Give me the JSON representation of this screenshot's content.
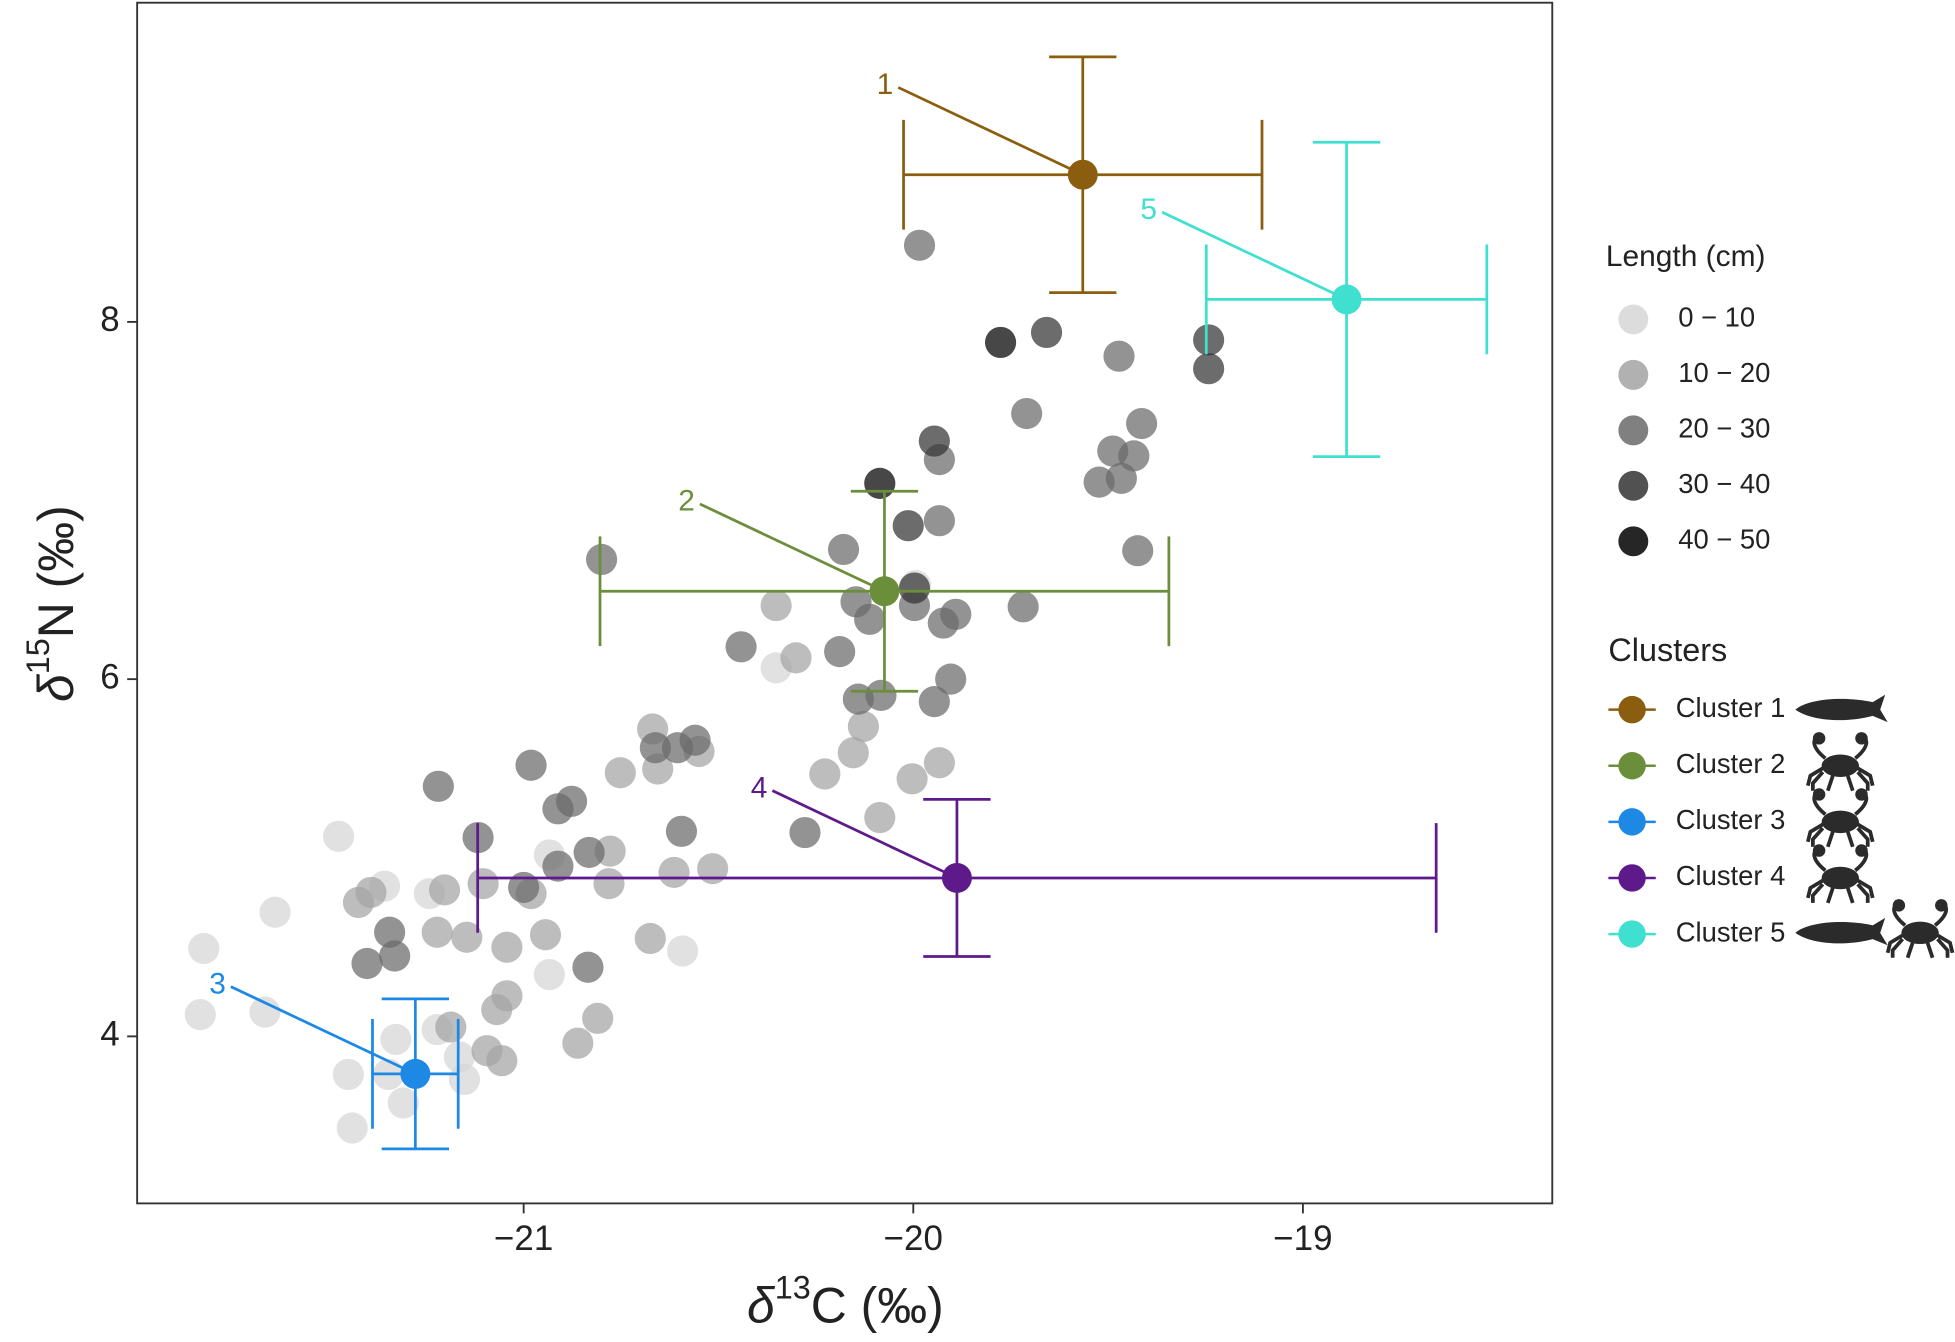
{
  "chart_data": {
    "type": "scatter",
    "x_label": {
      "symbol": "δ",
      "sup": "13",
      "text": "C (‰)"
    },
    "y_label": {
      "symbol": "δ",
      "sup": "15",
      "text": "N (‰)"
    },
    "xlim": [
      -21.992,
      -18.36
    ],
    "ylim": [
      3.065,
      9.787
    ],
    "xticks": [
      {
        "value": -21,
        "label": "−21"
      },
      {
        "value": -20,
        "label": "−20"
      },
      {
        "value": -19,
        "label": "−19"
      }
    ],
    "yticks": [
      4,
      6,
      8
    ],
    "legend_title": "Length (cm)",
    "series": [
      {
        "name": "0 − 10",
        "color": "#d6d6d6",
        "x": [
          -19.994,
          -20.352,
          -20.934,
          -21.242,
          -21.475,
          -21.638,
          -21.357,
          -20.592,
          -20.934,
          -21.821,
          -21.83,
          -21.664,
          -21.222,
          -21.328,
          -21.165,
          -21.152,
          -21.45,
          -21.347,
          -21.309,
          -21.44
        ],
        "y": [
          6.524,
          6.063,
          5.016,
          4.799,
          5.12,
          4.695,
          4.841,
          4.478,
          4.346,
          4.492,
          4.122,
          4.136,
          4.038,
          3.983,
          3.885,
          3.759,
          3.787,
          3.787,
          3.627,
          3.487
        ]
      },
      {
        "name": "10 − 20",
        "color": "#a3a3a3",
        "x": [
          -20.352,
          -20.301,
          -20.128,
          -20.154,
          -19.933,
          -20.227,
          -20.003,
          -20.086,
          -20.669,
          -20.656,
          -20.55,
          -20.752,
          -20.778,
          -20.515,
          -20.614,
          -20.781,
          -21.104,
          -20.981,
          -21.203,
          -21.424,
          -21.392,
          -21.222,
          -21.146,
          -20.944,
          -21.043,
          -20.675,
          -21.043,
          -21.069,
          -20.81,
          -20.861,
          -21.187,
          -21.094,
          -21.056
        ],
        "y": [
          6.412,
          6.119,
          5.735,
          5.588,
          5.532,
          5.469,
          5.442,
          5.225,
          5.721,
          5.497,
          5.595,
          5.476,
          5.037,
          4.939,
          4.918,
          4.855,
          4.855,
          4.799,
          4.82,
          4.75,
          4.806,
          4.583,
          4.555,
          4.569,
          4.499,
          4.548,
          4.227,
          4.15,
          4.101,
          3.962,
          4.052,
          3.92,
          3.864
        ]
      },
      {
        "name": "20 − 30",
        "color": "#6a6a6a",
        "x": [
          -19.984,
          -19.472,
          -19.709,
          -19.414,
          -19.933,
          -19.488,
          -19.434,
          -19.466,
          -19.523,
          -19.933,
          -19.424,
          -20.8,
          -20.179,
          -19.997,
          -20.147,
          -20.112,
          -19.891,
          -19.923,
          -19.718,
          -20.442,
          -20.189,
          -19.904,
          -19.946,
          -20.141,
          -20.083,
          -20.278,
          -20.595,
          -20.662,
          -20.605,
          -20.56,
          -20.981,
          -21.219,
          -20.877,
          -20.912,
          -21.117,
          -20.832,
          -20.912,
          -21.0,
          -21.344,
          -21.331,
          -21.402,
          -20.835
        ],
        "y": [
          8.429,
          7.808,
          7.487,
          7.431,
          7.229,
          7.277,
          7.25,
          7.124,
          7.103,
          6.887,
          6.719,
          6.67,
          6.726,
          6.412,
          6.433,
          6.335,
          6.363,
          6.314,
          6.405,
          6.181,
          6.154,
          6.0,
          5.874,
          5.888,
          5.909,
          5.141,
          5.148,
          5.616,
          5.616,
          5.658,
          5.518,
          5.4,
          5.316,
          5.274,
          5.113,
          5.03,
          4.953,
          4.834,
          4.583,
          4.45,
          4.408,
          4.387
        ]
      },
      {
        "name": "30 − 40",
        "color": "#333333",
        "x": [
          -19.658,
          -19.242,
          -19.242,
          -19.946,
          -20.013,
          -19.997
        ],
        "y": [
          7.941,
          7.899,
          7.738,
          7.333,
          6.859,
          6.51
        ]
      },
      {
        "name": "40 − 50",
        "color": "#000000",
        "x": [
          -19.776,
          -20.086
        ],
        "y": [
          7.885,
          7.096
        ]
      }
    ],
    "clusters_title": "Clusters",
    "clusters": [
      {
        "name": "Cluster 1",
        "label": "1",
        "color": "#8b5e0f",
        "x": -19.565,
        "y": 8.824,
        "xerr": 0.46,
        "yerr": 0.66
      },
      {
        "name": "Cluster 2",
        "label": "2",
        "color": "#6b8e3a",
        "x": -20.074,
        "y": 6.492,
        "xerr": 0.73,
        "yerr": 0.56
      },
      {
        "name": "Cluster 3",
        "label": "3",
        "color": "#1e88e5",
        "x": -21.278,
        "y": 3.79,
        "xerr": 0.11,
        "yerr": 0.42
      },
      {
        "name": "Cluster 4",
        "label": "4",
        "color": "#5e1a8a",
        "x": -19.888,
        "y": 4.887,
        "xerr": 1.23,
        "yerr": 0.44
      },
      {
        "name": "Cluster 5",
        "label": "5",
        "color": "#40e0d0",
        "x": -18.888,
        "y": 8.126,
        "xerr": 0.36,
        "yerr": 0.88
      }
    ]
  }
}
